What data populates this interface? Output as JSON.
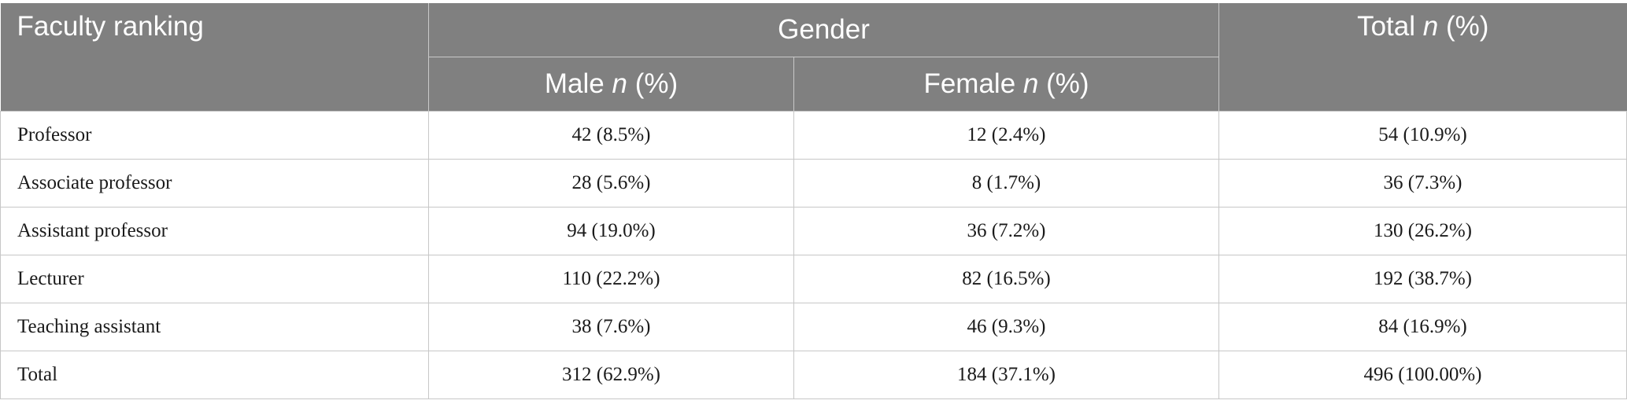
{
  "table": {
    "header": {
      "row_label": "Faculty ranking",
      "group_label": "Gender",
      "male_label": "Male",
      "female_label": "Female",
      "total_label": "Total",
      "n_symbol": "n",
      "pct_suffix": "(%)"
    },
    "rows": [
      {
        "label": "Professor",
        "male": "42 (8.5%)",
        "female": "12 (2.4%)",
        "total": "54 (10.9%)"
      },
      {
        "label": "Associate professor",
        "male": "28 (5.6%)",
        "female": "8 (1.7%)",
        "total": "36 (7.3%)"
      },
      {
        "label": "Assistant professor",
        "male": "94 (19.0%)",
        "female": "36 (7.2%)",
        "total": "130 (26.2%)"
      },
      {
        "label": "Lecturer",
        "male": "110 (22.2%)",
        "female": "82 (16.5%)",
        "total": "192 (38.7%)"
      },
      {
        "label": "Teaching assistant",
        "male": "38 (7.6%)",
        "female": "46 (9.3%)",
        "total": "84 (16.9%)"
      },
      {
        "label": "Total",
        "male": "312 (62.9%)",
        "female": "184 (37.1%)",
        "total": "496 (100.00%)"
      }
    ],
    "colors": {
      "header_bg": "#808080",
      "header_text": "#ffffff",
      "grid": "#c7c7c7"
    }
  }
}
